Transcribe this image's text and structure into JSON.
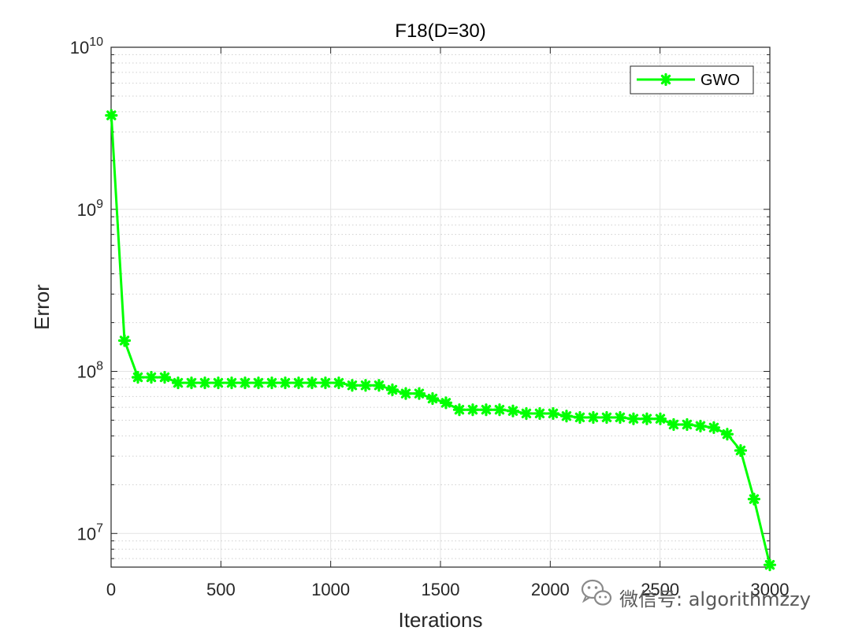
{
  "chart_data": {
    "type": "line",
    "title": "F18(D=30)",
    "xlabel": "Iterations",
    "ylabel": "Error",
    "yscale": "log",
    "xlim": [
      0,
      3000
    ],
    "ylim": [
      6200000,
      10000000000
    ],
    "xticks": [
      0,
      500,
      1000,
      1500,
      2000,
      2500,
      3000
    ],
    "xtick_labels": [
      "0",
      "500",
      "1000",
      "1500",
      "2000",
      "2500",
      "3000"
    ],
    "yticks": [
      10000000,
      100000000,
      1000000000,
      10000000000
    ],
    "ytick_labels": [
      {
        "base": "10",
        "exp": "7"
      },
      {
        "base": "10",
        "exp": "8"
      },
      {
        "base": "10",
        "exp": "9"
      },
      {
        "base": "10",
        "exp": "10"
      }
    ],
    "grid": true,
    "legend_position": "top-right",
    "series": [
      {
        "name": "GWO",
        "color": "#00ff00",
        "marker": "asterisk",
        "x": [
          1,
          61,
          122,
          183,
          244,
          305,
          366,
          427,
          488,
          549,
          610,
          671,
          732,
          793,
          854,
          915,
          976,
          1037,
          1098,
          1159,
          1220,
          1281,
          1342,
          1403,
          1464,
          1525,
          1586,
          1647,
          1708,
          1769,
          1830,
          1891,
          1952,
          2013,
          2074,
          2135,
          2196,
          2257,
          2318,
          2379,
          2440,
          2501,
          2562,
          2623,
          2684,
          2745,
          2806,
          2867,
          2928,
          3000
        ],
        "y": [
          3800000000,
          155000000,
          92000000,
          92000000,
          92000000,
          85000000,
          85000000,
          85000000,
          85000000,
          85000000,
          85000000,
          85000000,
          85000000,
          85000000,
          85000000,
          85000000,
          85000000,
          85000000,
          82000000,
          82000000,
          82000000,
          77000000,
          73000000,
          73000000,
          68000000,
          64000000,
          58000000,
          58000000,
          58000000,
          58000000,
          57000000,
          55000000,
          55000000,
          55000000,
          53000000,
          52000000,
          52000000,
          52000000,
          52000000,
          51000000,
          51000000,
          51000000,
          47000000,
          47000000,
          46000000,
          45000000,
          41000000,
          32500000,
          16300000,
          6400000
        ]
      }
    ]
  },
  "watermark": {
    "icon": "wechat-icon",
    "text": "微信号: algorithmzzy"
  }
}
